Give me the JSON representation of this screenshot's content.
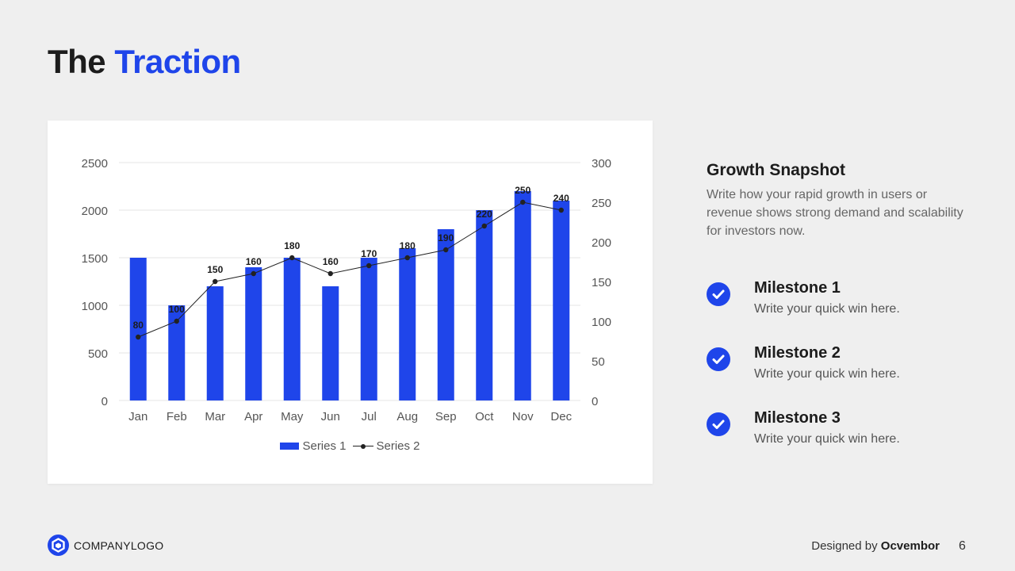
{
  "title": {
    "part1": "The",
    "part2": "Traction"
  },
  "colors": {
    "accent": "#1f45ea",
    "line": "#222222",
    "background": "#efefef"
  },
  "chart_data": {
    "type": "bar+line",
    "categories": [
      "Jan",
      "Feb",
      "Mar",
      "Apr",
      "May",
      "Jun",
      "Jul",
      "Aug",
      "Sep",
      "Oct",
      "Nov",
      "Dec"
    ],
    "series": [
      {
        "name": "Series 1",
        "type": "bar",
        "axis": "left",
        "values": [
          1500,
          1000,
          1200,
          1400,
          1500,
          1200,
          1500,
          1600,
          1800,
          2000,
          2200,
          2100
        ]
      },
      {
        "name": "Series 2",
        "type": "line",
        "axis": "right",
        "values": [
          80,
          100,
          150,
          160,
          180,
          160,
          170,
          180,
          190,
          220,
          250,
          240
        ]
      }
    ],
    "y_left": {
      "min": 0,
      "max": 2500,
      "ticks": [
        0,
        500,
        1000,
        1500,
        2000,
        2500
      ]
    },
    "y_right": {
      "min": 0,
      "max": 300,
      "ticks": [
        0,
        50,
        100,
        150,
        200,
        250,
        300
      ]
    },
    "grid": true,
    "legend": "bottom-center",
    "data_labels": "series-2"
  },
  "side": {
    "heading": "Growth Snapshot",
    "description": "Write how your rapid growth in users or revenue shows strong demand and scalability for investors now."
  },
  "milestones": [
    {
      "title": "Milestone 1",
      "text": "Write your quick win here."
    },
    {
      "title": "Milestone 2",
      "text": "Write your quick win here."
    },
    {
      "title": "Milestone 3",
      "text": "Write your quick win here."
    }
  ],
  "footer": {
    "logo_text": "COMPANYLOGO",
    "designed_by_prefix": "Designed by",
    "designed_by_name": "Ocvembor",
    "page_number": "6"
  }
}
